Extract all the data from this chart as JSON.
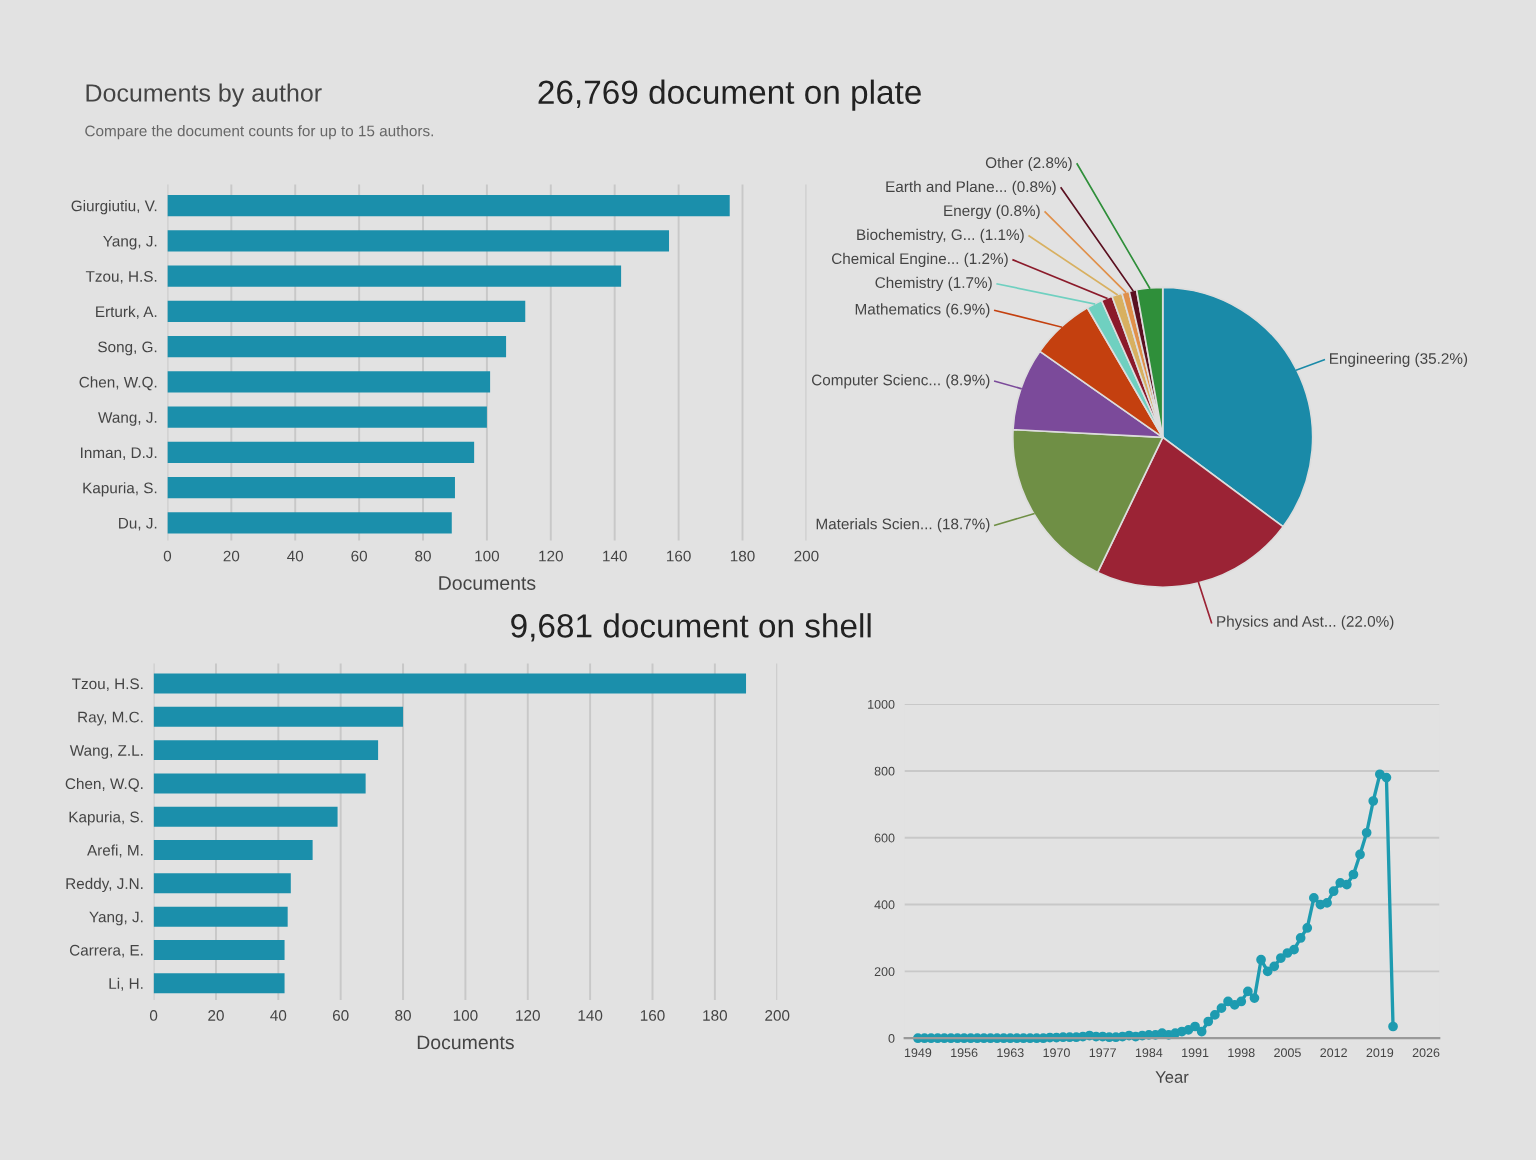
{
  "chart_data": [
    {
      "type": "bar",
      "orientation": "horizontal",
      "title": "Documents by author",
      "subtitle": "Compare the document counts for up to 15 authors.",
      "xlabel": "Documents",
      "annotations": [
        "26,769 document on plate"
      ],
      "categories": [
        "Giurgiutiu, V.",
        "Yang, J.",
        "Tzou, H.S.",
        "Erturk, A.",
        "Song, G.",
        "Chen, W.Q.",
        "Wang, J.",
        "Inman, D.J.",
        "Kapuria, S.",
        "Du, J."
      ],
      "values": [
        176,
        157,
        142,
        112,
        106,
        101,
        100,
        96,
        90,
        89
      ],
      "color": "#1b8fab",
      "xlim": [
        0,
        200
      ],
      "xticks": [
        0,
        20,
        40,
        60,
        80,
        100,
        120,
        140,
        160,
        180,
        200
      ],
      "grid": "x"
    },
    {
      "type": "pie",
      "categories": [
        "Engineering",
        "Physics and Ast...",
        "Materials Scien...",
        "Computer Scienc...",
        "Mathematics",
        "Chemistry",
        "Chemical Engine...",
        "Biochemistry, G...",
        "Energy",
        "Earth and Plane...",
        "Other"
      ],
      "values": [
        35.2,
        22.0,
        18.7,
        8.9,
        6.9,
        1.7,
        1.2,
        1.1,
        0.8,
        0.8,
        2.8
      ],
      "value_labels": [
        "(35.2%)",
        "(22.0%)",
        "(18.7%)",
        "(8.9%)",
        "(6.9%)",
        "(1.7%)",
        "(1.2%)",
        "(1.1%)",
        "(0.8%)",
        "(0.8%)",
        "(2.8%)"
      ],
      "colors": [
        "#1a8aa8",
        "#9b2335",
        "#6f8f45",
        "#7b4a9a",
        "#c4400f",
        "#6fd0c0",
        "#8b1a2a",
        "#d8b060",
        "#e0904a",
        "#5a1020",
        "#2f8f3a"
      ]
    },
    {
      "type": "bar",
      "orientation": "horizontal",
      "xlabel": "Documents",
      "annotations": [
        "9,681 document on shell"
      ],
      "categories": [
        "Tzou, H.S.",
        "Ray, M.C.",
        "Wang, Z.L.",
        "Chen, W.Q.",
        "Kapuria, S.",
        "Arefi, M.",
        "Reddy, J.N.",
        "Yang, J.",
        "Carrera, E.",
        "Li, H."
      ],
      "values": [
        190,
        80,
        72,
        68,
        59,
        51,
        44,
        43,
        42,
        42
      ],
      "color": "#1b8fab",
      "xlim": [
        0,
        200
      ],
      "xticks": [
        0,
        20,
        40,
        60,
        80,
        100,
        120,
        140,
        160,
        180,
        200
      ],
      "grid": "x"
    },
    {
      "type": "line",
      "xlabel": "Year",
      "color": "#1e9bb0",
      "marker": "circle",
      "grid": "y",
      "x": [
        1949,
        1950,
        1951,
        1952,
        1953,
        1954,
        1955,
        1956,
        1957,
        1958,
        1959,
        1960,
        1961,
        1962,
        1963,
        1964,
        1965,
        1966,
        1967,
        1968,
        1969,
        1970,
        1971,
        1972,
        1973,
        1974,
        1975,
        1976,
        1977,
        1978,
        1979,
        1980,
        1981,
        1982,
        1983,
        1984,
        1985,
        1986,
        1987,
        1988,
        1989,
        1990,
        1991,
        1992,
        1993,
        1994,
        1995,
        1996,
        1997,
        1998,
        1999,
        2000,
        2001,
        2002,
        2003,
        2004,
        2005,
        2006,
        2007,
        2008,
        2009,
        2010,
        2011,
        2012,
        2013,
        2014,
        2015,
        2016,
        2017,
        2018,
        2019,
        2020,
        2021
      ],
      "values": [
        0,
        0,
        0,
        0,
        0,
        0,
        0,
        0,
        0,
        0,
        0,
        0,
        0,
        0,
        0,
        0,
        0,
        0,
        0,
        0,
        2,
        2,
        3,
        3,
        3,
        5,
        8,
        5,
        5,
        3,
        3,
        5,
        8,
        5,
        8,
        10,
        10,
        15,
        10,
        15,
        20,
        25,
        35,
        20,
        50,
        70,
        90,
        110,
        100,
        110,
        140,
        120,
        235,
        200,
        215,
        240,
        255,
        265,
        300,
        330,
        420,
        400,
        405,
        440,
        465,
        460,
        490,
        550,
        615,
        710,
        790,
        780,
        35
      ],
      "xlim": [
        1947,
        2028
      ],
      "xticks": [
        1949,
        1956,
        1963,
        1970,
        1977,
        1984,
        1991,
        1998,
        2005,
        2012,
        2019,
        2026
      ],
      "ylim": [
        0,
        1000
      ],
      "yticks": [
        0,
        200,
        400,
        600,
        800,
        1000
      ]
    }
  ]
}
